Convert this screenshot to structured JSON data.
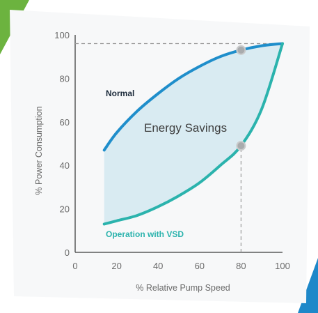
{
  "chart_data": {
    "type": "line",
    "xlabel": "% Relative Pump Speed",
    "ylabel": "% Power Consumption",
    "xlim": [
      0,
      100
    ],
    "ylim": [
      0,
      100
    ],
    "x_ticks": [
      0,
      20,
      40,
      60,
      80,
      100
    ],
    "y_ticks": [
      0,
      20,
      40,
      60,
      80,
      100
    ],
    "grid": false,
    "series": [
      {
        "name": "Normal",
        "color": "#1f8ecb",
        "x": [
          14,
          20,
          30,
          40,
          50,
          60,
          70,
          80,
          90,
          100
        ],
        "y": [
          47,
          55,
          65,
          73,
          80,
          85.5,
          90,
          93,
          95,
          96
        ]
      },
      {
        "name": "Operation with VSD",
        "color": "#2bb3ad",
        "x": [
          14,
          20,
          30,
          40,
          50,
          60,
          70,
          80,
          90,
          100
        ],
        "y": [
          13,
          14.5,
          17,
          21,
          26,
          32,
          40,
          49,
          66,
          96
        ]
      }
    ],
    "shaded_region": {
      "label": "Energy Savings",
      "between": [
        "Normal",
        "Operation with VSD"
      ],
      "color": "#d4e9f1"
    },
    "reference_points": [
      {
        "x": 80,
        "y": 93
      },
      {
        "x": 80,
        "y": 49
      }
    ],
    "reference_lines": [
      {
        "from": [
          0,
          96
        ],
        "to": [
          100,
          96
        ],
        "style": "dashed"
      },
      {
        "from": [
          80,
          0
        ],
        "to": [
          80,
          49
        ],
        "style": "dashed"
      }
    ]
  },
  "decor": {
    "green_accent": "#6cb33f",
    "blue_accent": "#1e88c9"
  }
}
